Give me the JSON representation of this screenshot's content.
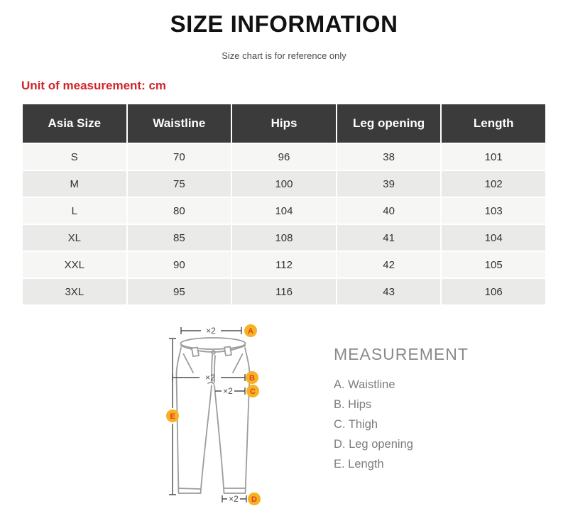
{
  "page": {
    "title": "SIZE INFORMATION",
    "subtitle": "Size chart is for reference only",
    "unit_note": "Unit of measurement: cm"
  },
  "table": {
    "headers": [
      "Asia Size",
      "Waistline",
      "Hips",
      "Leg opening",
      "Length"
    ],
    "rows": [
      [
        "S",
        "70",
        "96",
        "38",
        "101"
      ],
      [
        "M",
        "75",
        "100",
        "39",
        "102"
      ],
      [
        "L",
        "80",
        "104",
        "40",
        "103"
      ],
      [
        "XL",
        "85",
        "108",
        "41",
        "104"
      ],
      [
        "XXL",
        "90",
        "112",
        "42",
        "105"
      ],
      [
        "3XL",
        "95",
        "116",
        "43",
        "106"
      ]
    ]
  },
  "diagram": {
    "multiplier_label": "×2",
    "badges": {
      "a": "A",
      "b": "B",
      "c": "C",
      "d": "D",
      "e": "E"
    }
  },
  "measurement": {
    "heading": "MEASUREMENT",
    "items": [
      "A. Waistline",
      "B. Hips",
      "C. Thigh",
      "D. Leg opening",
      "E. Length"
    ]
  },
  "colors": {
    "accent_red": "#d0252b",
    "table_header_bg": "#3b3b3b",
    "row_light": "#f6f6f5",
    "row_shaded": "#eaeae9",
    "badge_fill": "#f6b221",
    "badge_letter": "#e23c30",
    "drawing_gray": "#9c9c9c",
    "text_gray": "#7d7d7d"
  }
}
